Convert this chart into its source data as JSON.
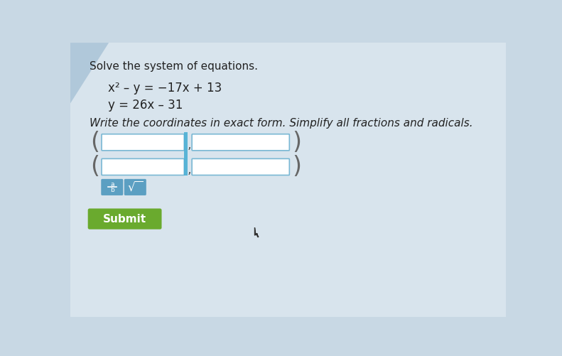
{
  "bg_color": "#c8d8e4",
  "card_color": "#d8e4ed",
  "title": "Solve the system of equations.",
  "eq1": "x² – y = −17x + 13",
  "eq2": "y = 26x – 31",
  "instruction": "Write the coordinates in exact form. Simplify all fractions and radicals.",
  "input_box_color": "#ffffff",
  "input_box_border": "#7ab8d4",
  "frac_btn_color": "#5b9fc2",
  "sqrt_btn_color": "#5b9fc2",
  "submit_color": "#6aaa2e",
  "submit_text": "Submit",
  "submit_text_color": "#ffffff",
  "title_fontsize": 11,
  "eq_fontsize": 12,
  "instr_fontsize": 11,
  "triangle_color": "#b0c8da"
}
